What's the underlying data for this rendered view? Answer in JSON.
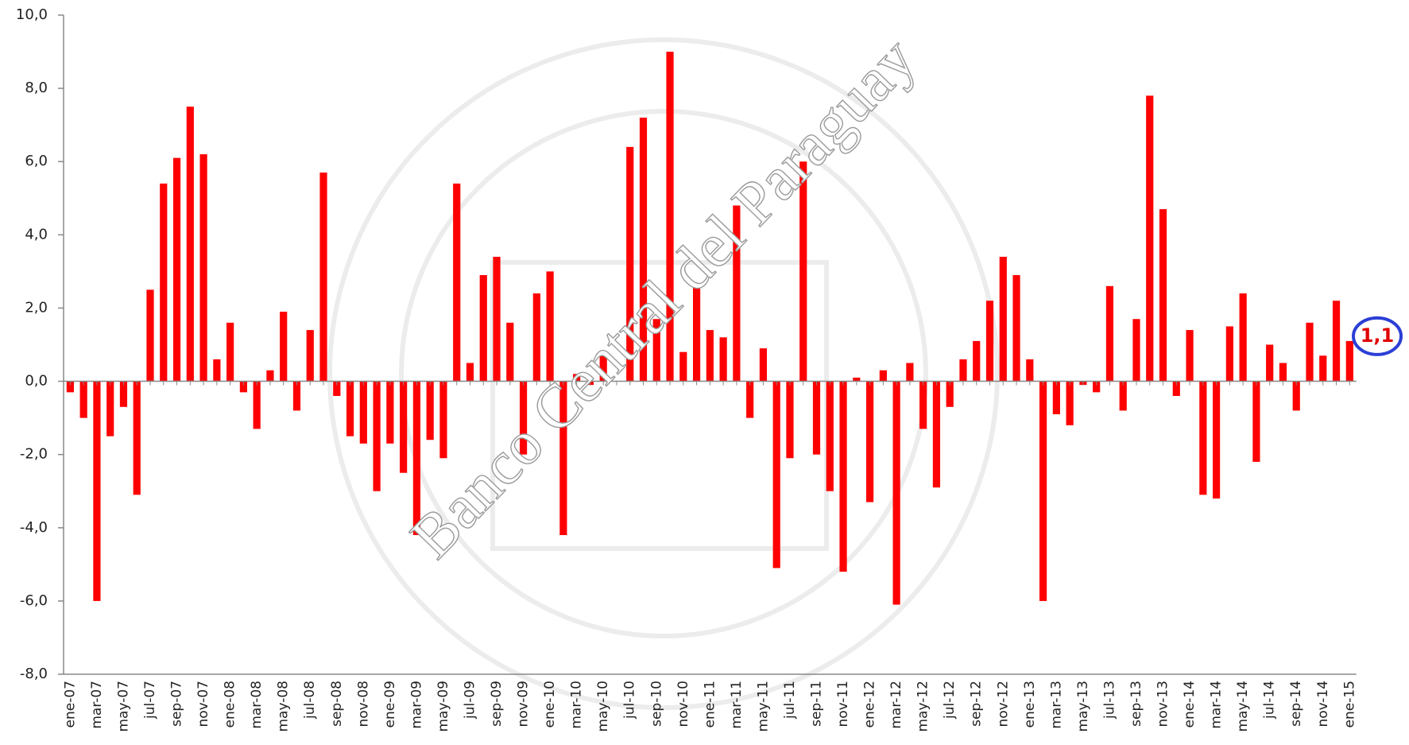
{
  "chart_data": {
    "type": "bar",
    "categories": [
      "ene-07",
      null,
      "mar-07",
      null,
      "may-07",
      null,
      "jul-07",
      null,
      "sep-07",
      null,
      "nov-07",
      null,
      "ene-08",
      null,
      "mar-08",
      null,
      "may-08",
      null,
      "jul-08",
      null,
      "sep-08",
      null,
      "nov-08",
      null,
      "ene-09",
      null,
      "mar-09",
      null,
      "may-09",
      null,
      "jul-09",
      null,
      "sep-09",
      null,
      "nov-09",
      null,
      "ene-10",
      null,
      "mar-10",
      null,
      "may-10",
      null,
      "jul-10",
      null,
      "sep-10",
      null,
      "nov-10",
      null,
      "ene-11",
      null,
      "mar-11",
      null,
      "may-11",
      null,
      "jul-11",
      null,
      "sep-11",
      null,
      "nov-11",
      null,
      "ene-12",
      null,
      "mar-12",
      null,
      "may-12",
      null,
      "jul-12",
      null,
      "sep-12",
      null,
      "nov-12",
      null,
      "ene-13",
      null,
      "mar-13",
      null,
      "may-13",
      null,
      "jul-13",
      null,
      "sep-13",
      null,
      "nov-13",
      null,
      "ene-14",
      null,
      "mar-14",
      null,
      "may-14",
      null,
      "jul-14",
      null,
      "sep-14",
      null,
      "nov-14",
      null,
      "ene-15"
    ],
    "values": [
      -0.3,
      -1.0,
      -6.0,
      -1.5,
      -0.7,
      -3.1,
      2.5,
      5.4,
      6.1,
      7.5,
      6.2,
      0.6,
      1.6,
      -0.3,
      -1.3,
      0.3,
      1.9,
      -0.8,
      1.4,
      5.7,
      -0.4,
      -1.5,
      -1.7,
      -3.0,
      -1.7,
      -2.5,
      -4.2,
      -1.6,
      -2.1,
      5.4,
      0.5,
      2.9,
      3.4,
      1.6,
      -2.0,
      2.4,
      3.0,
      -4.2,
      0.2,
      -0.1,
      0.8,
      0.0,
      6.4,
      7.2,
      1.7,
      9.0,
      0.8,
      2.6,
      1.4,
      1.2,
      4.8,
      -1.0,
      0.9,
      -5.1,
      -2.1,
      6.0,
      -2.0,
      -3.0,
      -5.2,
      0.1,
      -3.3,
      0.3,
      -6.1,
      0.5,
      -1.3,
      -2.9,
      -0.7,
      0.6,
      1.1,
      2.2,
      3.4,
      2.9,
      0.6,
      -6.0,
      -0.9,
      -1.2,
      -0.1,
      -0.3,
      2.6,
      -0.8,
      1.7,
      7.8,
      4.7,
      -0.4,
      1.4,
      -3.1,
      -3.2,
      1.5,
      2.4,
      -2.2,
      1.0,
      0.5,
      -0.8,
      1.6,
      0.7,
      2.2,
      1.1
    ],
    "color": "#ff0000",
    "ylim": [
      -8,
      10
    ],
    "yticks": [
      {
        "value": -8,
        "label": "-8,0"
      },
      {
        "value": -6,
        "label": "-6,0"
      },
      {
        "value": -4,
        "label": "-4,0"
      },
      {
        "value": -2,
        "label": "-2,0"
      },
      {
        "value": 0,
        "label": "0,0"
      },
      {
        "value": 2,
        "label": "2,0"
      },
      {
        "value": 4,
        "label": "4,0"
      },
      {
        "value": 6,
        "label": "6,0"
      },
      {
        "value": 8,
        "label": "8,0"
      },
      {
        "value": 10,
        "label": "10,0"
      }
    ],
    "annotation": {
      "value": 1.1,
      "label": "1,1"
    },
    "watermark": "Banco Central del Paraguay"
  }
}
